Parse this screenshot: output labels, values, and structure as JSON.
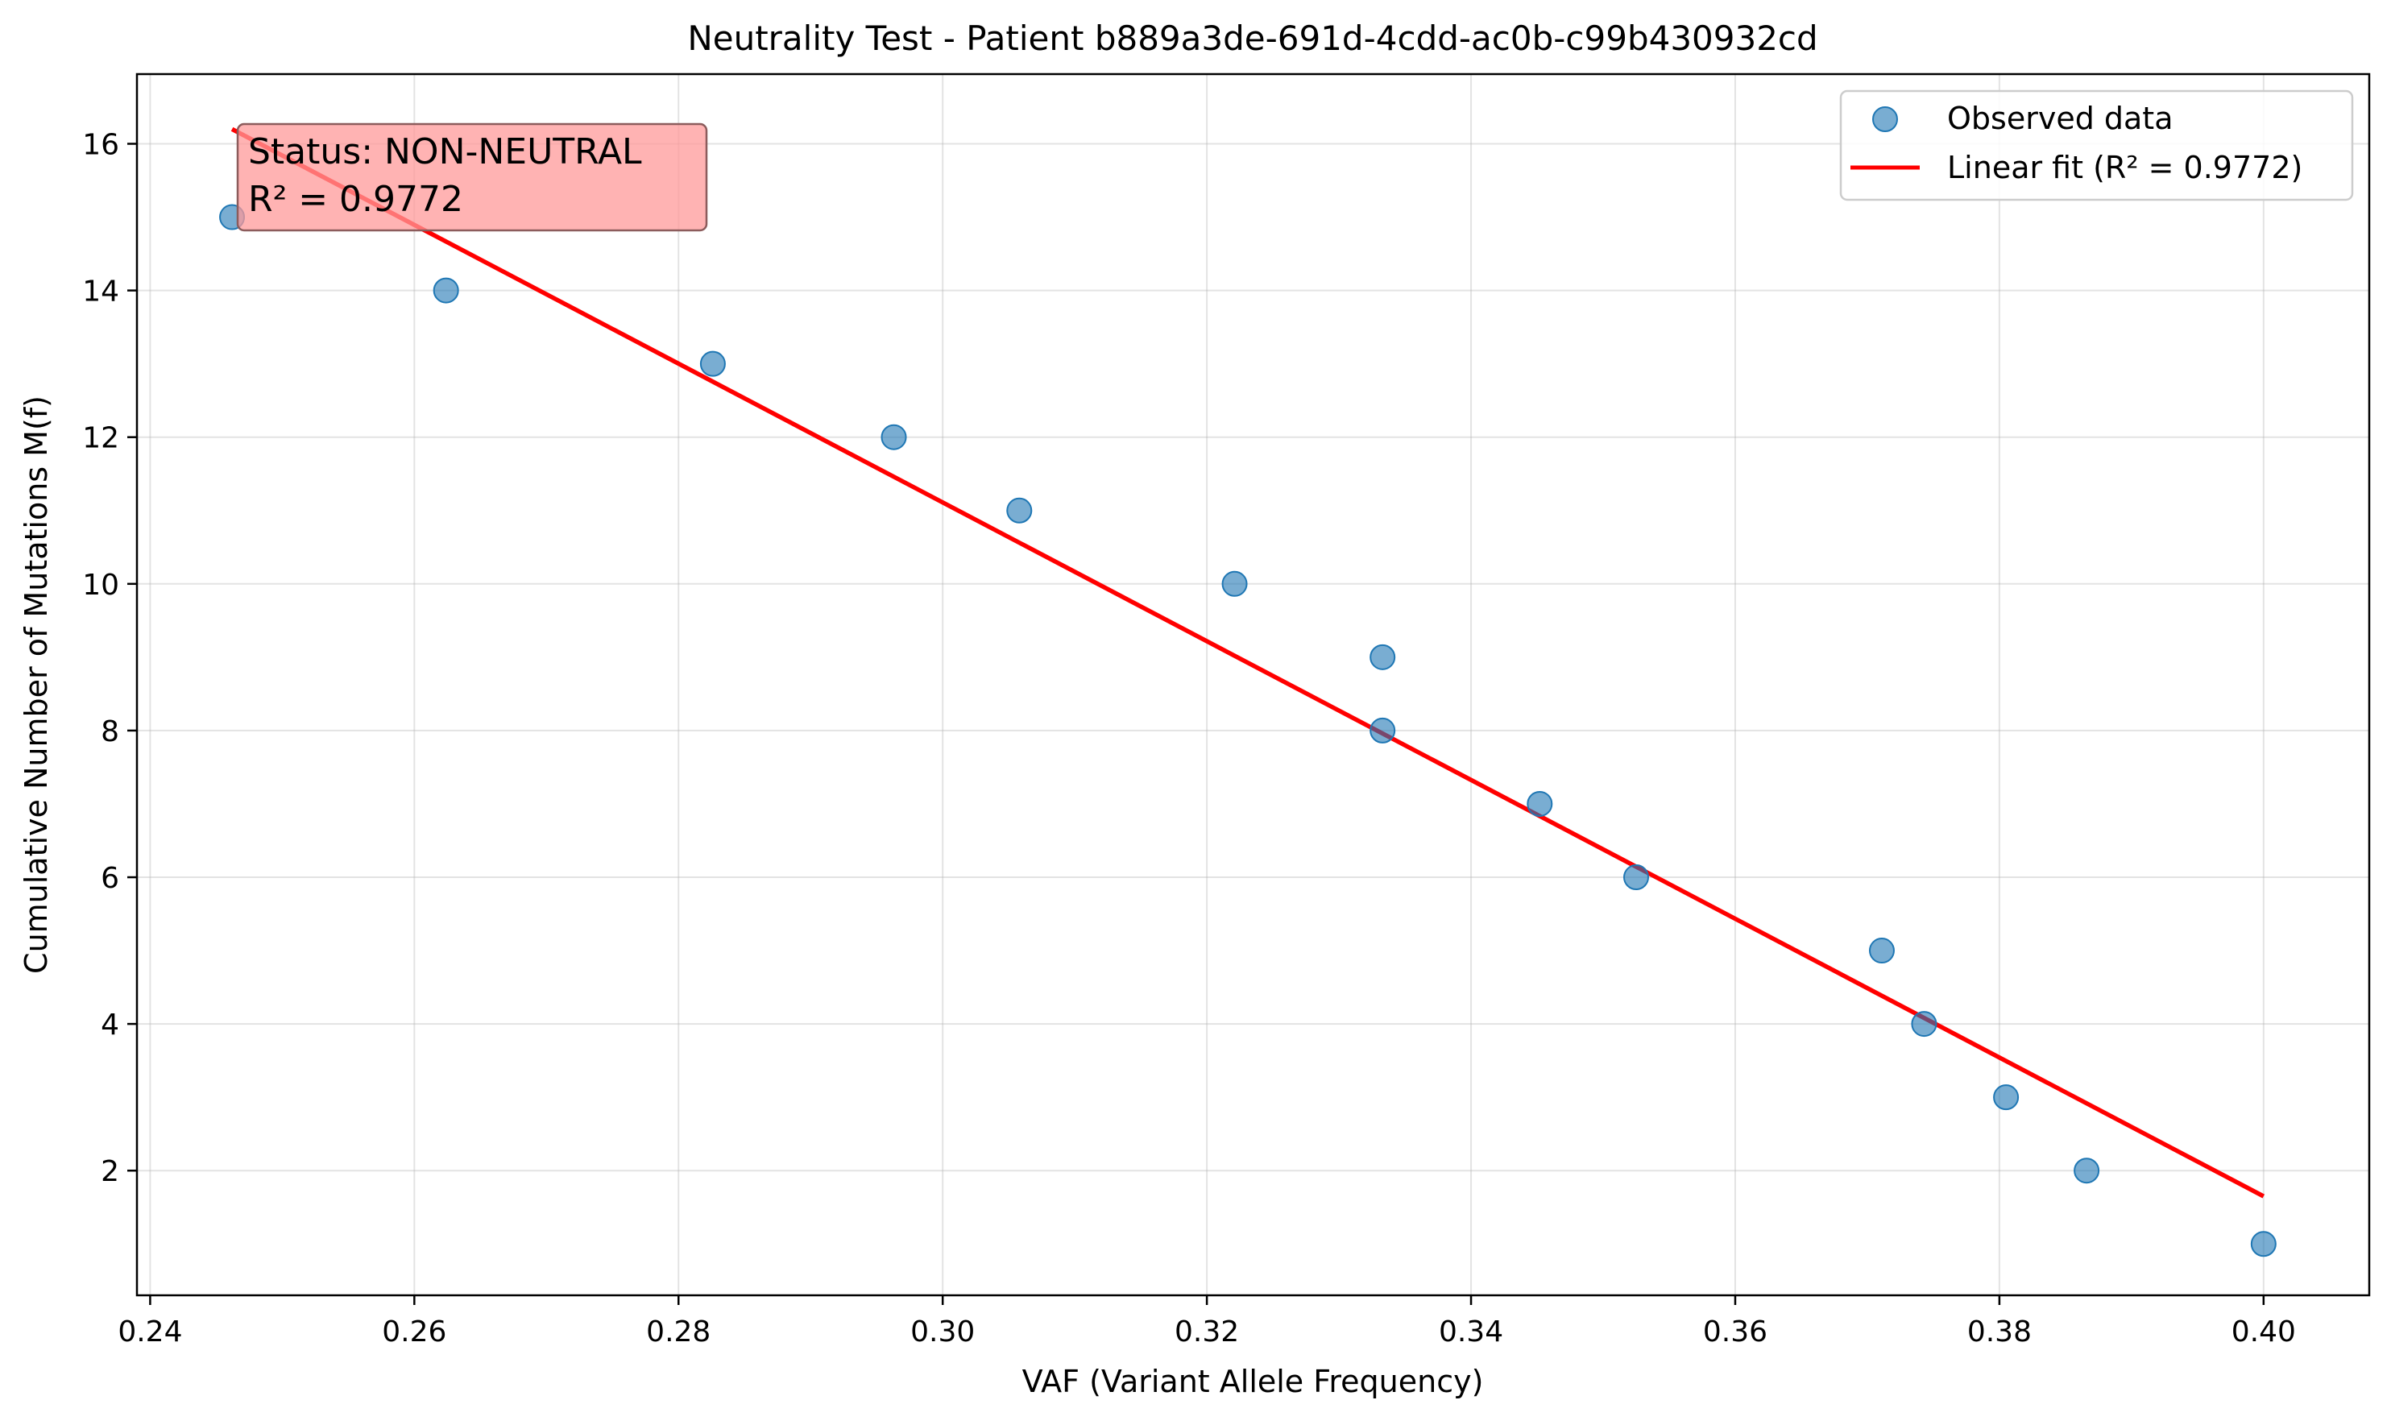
{
  "chart_data": {
    "type": "scatter",
    "title": "Neutrality Test - Patient b889a3de-691d-4cdd-ac0b-c99b430932cd",
    "xlabel": "VAF (Variant Allele Frequency)",
    "ylabel": "Cumulative Number of Mutations M(f)",
    "xlim": [
      0.239,
      0.408
    ],
    "ylim": [
      0.3,
      16.95
    ],
    "xticks": [
      0.24,
      0.26,
      0.28,
      0.3,
      0.32,
      0.34,
      0.36,
      0.38,
      0.4
    ],
    "xtick_labels": [
      "0.24",
      "0.26",
      "0.28",
      "0.30",
      "0.32",
      "0.34",
      "0.36",
      "0.38",
      "0.40"
    ],
    "yticks": [
      2,
      4,
      6,
      8,
      10,
      12,
      14,
      16
    ],
    "ytick_labels": [
      "2",
      "4",
      "6",
      "8",
      "10",
      "12",
      "14",
      "16"
    ],
    "grid": true,
    "legend_position": "top-right",
    "series": [
      {
        "name": "Observed data",
        "kind": "scatter",
        "color": "#1f77b4",
        "x": [
          0.2462,
          0.2624,
          0.2826,
          0.2963,
          0.3058,
          0.3221,
          0.3333,
          0.3333,
          0.3452,
          0.3525,
          0.3711,
          0.3743,
          0.3805,
          0.3866,
          0.4
        ],
        "y": [
          15,
          14,
          13,
          12,
          11,
          10,
          9,
          8,
          7,
          6,
          5,
          4,
          3,
          2,
          1
        ]
      },
      {
        "name": "Linear fit (R² = 0.9772)",
        "kind": "line",
        "color": "#ff0000",
        "x": [
          0.2462,
          0.4
        ],
        "y": [
          16.2,
          1.65
        ]
      }
    ],
    "annotation": {
      "lines": [
        "Status: NON-NEUTRAL",
        "R² = 0.9772"
      ],
      "background": "#ff9999",
      "border": "#8c5c5c"
    }
  }
}
